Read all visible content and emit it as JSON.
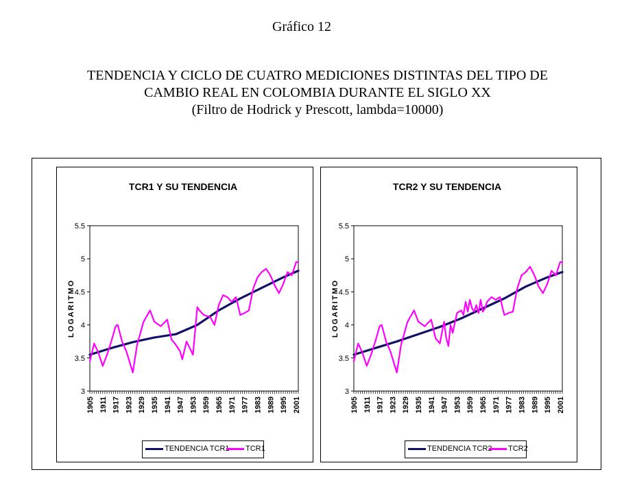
{
  "figure_label": "Gráfico 12",
  "heading": {
    "line1": "TENDENCIA Y CICLO DE CUATRO MEDICIONES DISTINTAS DEL TIPO DE",
    "line2": "CAMBIO REAL EN COLOMBIA DURANTE EL SIGLO XX",
    "line3": "(Filtro de Hodrick y Prescott, lambda=10000)"
  },
  "colors": {
    "trend": "#10106a",
    "series": "#ff00ff"
  },
  "chart_data": [
    {
      "type": "line",
      "title": "TCR1 Y SU TENDENCIA",
      "xlabel": "",
      "ylabel": "LOGARITMO",
      "ylim": [
        3,
        5.5
      ],
      "yticks": [
        "3",
        "3.5",
        "4",
        "4.5",
        "5",
        "5.5"
      ],
      "xlim": [
        1905,
        2002
      ],
      "xticks": [
        "1905",
        "1911",
        "1917",
        "1923",
        "1929",
        "1935",
        "1941",
        "1947",
        "1953",
        "1959",
        "1965",
        "1971",
        "1977",
        "1983",
        "1989",
        "1995",
        "2001"
      ],
      "series": [
        {
          "name": "TENDENCIA TCR1",
          "x": [
            1905,
            1915,
            1925,
            1935,
            1945,
            1955,
            1965,
            1975,
            1985,
            1995,
            2002
          ],
          "values": [
            3.55,
            3.65,
            3.74,
            3.81,
            3.86,
            4.0,
            4.22,
            4.4,
            4.56,
            4.72,
            4.82
          ]
        },
        {
          "name": "TCR1",
          "x": [
            1905,
            1907,
            1909,
            1911,
            1913,
            1915,
            1917,
            1918,
            1920,
            1922,
            1925,
            1927,
            1930,
            1933,
            1935,
            1938,
            1941,
            1943,
            1945,
            1947,
            1948,
            1950,
            1953,
            1955,
            1956,
            1958,
            1961,
            1963,
            1965,
            1967,
            1969,
            1971,
            1973,
            1975,
            1977,
            1979,
            1981,
            1983,
            1985,
            1987,
            1989,
            1991,
            1993,
            1995,
            1997,
            1999,
            2001,
            2002
          ],
          "values": [
            3.45,
            3.72,
            3.58,
            3.38,
            3.55,
            3.75,
            3.98,
            4.0,
            3.75,
            3.6,
            3.28,
            3.7,
            4.05,
            4.22,
            4.05,
            3.98,
            4.08,
            3.78,
            3.7,
            3.6,
            3.48,
            3.75,
            3.55,
            4.27,
            4.22,
            4.15,
            4.12,
            4.0,
            4.3,
            4.45,
            4.42,
            4.35,
            4.42,
            4.15,
            4.18,
            4.22,
            4.55,
            4.72,
            4.8,
            4.85,
            4.75,
            4.6,
            4.48,
            4.62,
            4.8,
            4.75,
            4.95,
            4.95
          ]
        }
      ]
    },
    {
      "type": "line",
      "title": "TCR2 Y SU TENDENCIA",
      "xlabel": "",
      "ylabel": "LOGARITMO",
      "ylim": [
        3,
        5.5
      ],
      "yticks": [
        "3",
        "3.5",
        "4",
        "4.5",
        "5",
        "5.5"
      ],
      "xlim": [
        1905,
        2002
      ],
      "xticks": [
        "1905",
        "1911",
        "1917",
        "1923",
        "1929",
        "1935",
        "1941",
        "1947",
        "1953",
        "1959",
        "1965",
        "1971",
        "1977",
        "1983",
        "1989",
        "1995",
        "2001"
      ],
      "series": [
        {
          "name": "TENDENCIA TCR2",
          "x": [
            1905,
            1915,
            1925,
            1935,
            1945,
            1955,
            1965,
            1975,
            1985,
            1995,
            2002
          ],
          "values": [
            3.55,
            3.65,
            3.75,
            3.86,
            3.97,
            4.1,
            4.25,
            4.4,
            4.58,
            4.72,
            4.8
          ]
        },
        {
          "name": "TCR2",
          "x": [
            1905,
            1907,
            1909,
            1911,
            1913,
            1915,
            1917,
            1918,
            1920,
            1922,
            1925,
            1927,
            1930,
            1933,
            1935,
            1938,
            1941,
            1943,
            1945,
            1947,
            1948,
            1949,
            1950,
            1951,
            1953,
            1955,
            1956,
            1957,
            1958,
            1959,
            1960,
            1961,
            1962,
            1963,
            1964,
            1965,
            1966,
            1967,
            1969,
            1971,
            1973,
            1975,
            1977,
            1979,
            1981,
            1983,
            1985,
            1987,
            1989,
            1991,
            1993,
            1995,
            1997,
            1999,
            2001,
            2002
          ],
          "values": [
            3.45,
            3.72,
            3.58,
            3.38,
            3.55,
            3.75,
            3.98,
            4.0,
            3.75,
            3.6,
            3.28,
            3.7,
            4.05,
            4.22,
            4.05,
            3.98,
            4.08,
            3.8,
            3.72,
            4.05,
            3.8,
            3.68,
            4.0,
            3.88,
            4.18,
            4.22,
            4.15,
            4.35,
            4.2,
            4.38,
            4.25,
            4.2,
            4.3,
            4.18,
            4.38,
            4.2,
            4.25,
            4.35,
            4.42,
            4.38,
            4.42,
            4.15,
            4.18,
            4.2,
            4.55,
            4.75,
            4.8,
            4.88,
            4.75,
            4.58,
            4.48,
            4.62,
            4.82,
            4.75,
            4.95,
            4.95
          ]
        }
      ]
    }
  ]
}
